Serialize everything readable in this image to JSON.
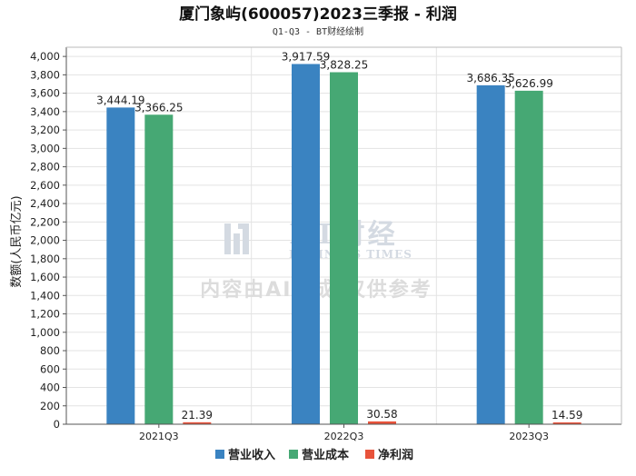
{
  "chart_data": {
    "type": "bar",
    "title": "厦门象屿(600057)2023三季报 - 利润",
    "subtitle": "Q1-Q3 - BT财经绘制",
    "ylabel": "数额(人民币亿元)",
    "xlabel": "",
    "ylim": [
      0,
      4100
    ],
    "yticks": [
      0,
      200,
      400,
      600,
      800,
      1000,
      1200,
      1400,
      1600,
      1800,
      2000,
      2200,
      2400,
      2600,
      2800,
      3000,
      3200,
      3400,
      3600,
      3800,
      4000
    ],
    "ytick_labels": [
      "0",
      "200",
      "400",
      "600",
      "800",
      "1,000",
      "1,200",
      "1,400",
      "1,600",
      "1,800",
      "2,000",
      "2,200",
      "2,400",
      "2,600",
      "2,800",
      "3,000",
      "3,200",
      "3,400",
      "3,600",
      "3,800",
      "4,000"
    ],
    "categories": [
      "2021Q3",
      "2022Q3",
      "2023Q3"
    ],
    "series": [
      {
        "name": "营业收入",
        "color": "#3a83c1",
        "values": [
          3444.19,
          3917.59,
          3686.35
        ],
        "labels": [
          "3,444.19",
          "3,917.59",
          "3,686.35"
        ]
      },
      {
        "name": "营业成本",
        "color": "#46a874",
        "values": [
          3366.25,
          3828.25,
          3626.99
        ],
        "labels": [
          "3,366.25",
          "3,828.25",
          "3,626.99"
        ]
      },
      {
        "name": "净利润",
        "color": "#e8533b",
        "values": [
          21.39,
          30.58,
          14.59
        ],
        "labels": [
          "21.39",
          "30.58",
          "14.59"
        ]
      }
    ],
    "grid": true,
    "legend_position": "bottom-center"
  },
  "watermark": {
    "brand": "BT财经",
    "brand_sub": "BUSINESS TIMES",
    "note": "内容由AI生成,仅供参考"
  }
}
